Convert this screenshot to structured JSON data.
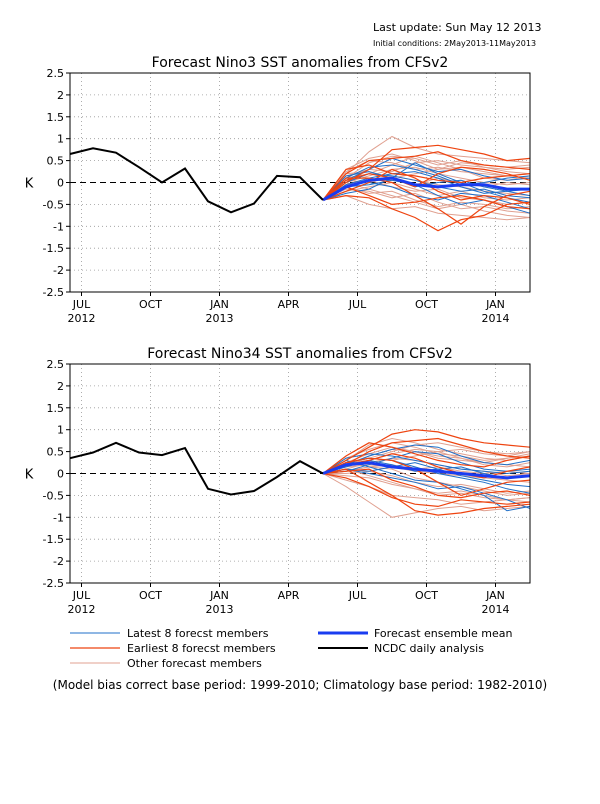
{
  "header": {
    "last_update": "Last update: Sun May 12 2013",
    "initial_condition": "Initial conditions: 2May2013-11May2013"
  },
  "x_axis": {
    "ticks": [
      {
        "label": "JUL",
        "year": "2012",
        "month": 6
      },
      {
        "label": "OCT",
        "year": "",
        "month": 9
      },
      {
        "label": "JAN",
        "year": "2013",
        "month": 12
      },
      {
        "label": "APR",
        "year": "",
        "month": 15
      },
      {
        "label": "JUL",
        "year": "",
        "month": 18
      },
      {
        "label": "OCT",
        "year": "",
        "month": 21
      },
      {
        "label": "JAN",
        "year": "2014",
        "month": 24
      }
    ]
  },
  "legend": {
    "latest": "Latest 8 forecst members",
    "earliest": "Earliest 8 forecst members",
    "other": "Other forecast members",
    "mean": "Forecast ensemble mean",
    "ncdc": "NCDC daily analysis"
  },
  "footnote": "(Model bias correct base period: 1999-2010; Climatology base period: 1982-2010)",
  "colors": {
    "latest": "#1f6fc8",
    "earliest": "#ee4410",
    "other": "#e0a090",
    "mean": "#1a3cf0",
    "observed": "#000000"
  },
  "chart_data": [
    {
      "type": "line",
      "title": "Forecast Nino3 SST anomalies from CFSv2",
      "ylabel": "K",
      "ylim": [
        -2.5,
        2.5
      ],
      "yticks": [
        2.5,
        2,
        1.5,
        1,
        0.5,
        0,
        -0.5,
        -1,
        -1.5,
        -2,
        -2.5
      ],
      "xlim": [
        5.5,
        25.5
      ],
      "grid": true,
      "legend_position": "below",
      "observed": {
        "name": "NCDC daily analysis",
        "x": [
          5.5,
          6.5,
          7.5,
          8.5,
          9.5,
          10.5,
          11.5,
          12.5,
          13.5,
          14.5,
          15.5,
          16.5
        ],
        "y": [
          0.65,
          0.78,
          0.68,
          0.35,
          0.0,
          0.32,
          -0.43,
          -0.68,
          -0.48,
          0.15,
          0.12,
          -0.4
        ]
      },
      "ensemble_mean": {
        "name": "Forecast ensemble mean",
        "x": [
          16.5,
          17.5,
          18.5,
          19.5,
          20.5,
          21.5,
          22.5,
          23.5,
          24.5,
          25.5
        ],
        "y": [
          -0.4,
          -0.1,
          0.05,
          0.1,
          -0.05,
          -0.1,
          -0.05,
          -0.05,
          -0.15,
          -0.15
        ]
      },
      "member_x": [
        16.5,
        17.5,
        18.5,
        19.5,
        20.5,
        21.5,
        22.5,
        23.5,
        24.5,
        25.5
      ],
      "latest_members": [
        [
          -0.4,
          0.05,
          0.3,
          0.55,
          0.4,
          0.25,
          0.3,
          0.15,
          0.05,
          0.1
        ],
        [
          -0.4,
          -0.25,
          -0.15,
          0.1,
          0.45,
          0.2,
          0.0,
          -0.2,
          -0.35,
          -0.45
        ],
        [
          -0.4,
          0.1,
          0.35,
          0.4,
          0.3,
          0.15,
          -0.05,
          0.0,
          0.1,
          0.15
        ],
        [
          -0.4,
          -0.2,
          0.0,
          -0.1,
          -0.3,
          -0.4,
          -0.25,
          -0.3,
          -0.45,
          -0.6
        ],
        [
          -0.4,
          0.0,
          0.2,
          0.15,
          0.05,
          -0.1,
          -0.2,
          -0.15,
          -0.3,
          -0.35
        ],
        [
          -0.4,
          -0.1,
          -0.05,
          0.05,
          -0.05,
          -0.3,
          -0.5,
          -0.4,
          -0.55,
          -0.7
        ],
        [
          -0.4,
          0.15,
          0.25,
          0.1,
          -0.1,
          0.0,
          0.05,
          -0.1,
          -0.2,
          -0.15
        ],
        [
          -0.4,
          -0.05,
          0.1,
          0.2,
          0.25,
          0.1,
          -0.1,
          -0.25,
          -0.2,
          -0.3
        ]
      ],
      "earliest_members": [
        [
          -0.4,
          0.0,
          0.3,
          0.75,
          0.8,
          0.85,
          0.75,
          0.65,
          0.5,
          0.55
        ],
        [
          -0.4,
          0.2,
          0.5,
          0.55,
          0.6,
          0.7,
          0.5,
          0.4,
          0.35,
          0.3
        ],
        [
          -0.4,
          -0.3,
          -0.35,
          -0.6,
          -0.8,
          -1.1,
          -0.85,
          -0.75,
          -0.5,
          -0.45
        ],
        [
          -0.4,
          0.1,
          0.1,
          0.0,
          -0.3,
          -0.6,
          -0.95,
          -0.55,
          -0.3,
          -0.2
        ],
        [
          -0.4,
          -0.1,
          -0.3,
          -0.5,
          -0.45,
          -0.35,
          -0.3,
          -0.4,
          -0.55,
          -0.6
        ],
        [
          -0.4,
          0.3,
          0.4,
          0.2,
          0.15,
          0.05,
          0.0,
          0.1,
          0.15,
          0.2
        ],
        [
          -0.4,
          -0.2,
          0.0,
          0.3,
          0.1,
          -0.2,
          -0.4,
          -0.3,
          -0.35,
          -0.5
        ],
        [
          -0.4,
          0.05,
          0.2,
          0.1,
          -0.1,
          0.2,
          0.35,
          0.3,
          0.2,
          0.05
        ]
      ],
      "other_members": [
        [
          -0.4,
          0.2,
          0.7,
          1.05,
          0.8,
          0.65,
          0.6,
          0.55,
          0.5,
          0.45
        ],
        [
          -0.4,
          0.1,
          0.45,
          0.6,
          0.55,
          0.4,
          0.5,
          0.35,
          0.25,
          0.2
        ],
        [
          -0.4,
          -0.3,
          -0.5,
          -0.6,
          -0.55,
          -0.7,
          -0.75,
          -0.8,
          -0.85,
          -0.8
        ],
        [
          -0.4,
          0.0,
          0.15,
          0.3,
          0.35,
          0.2,
          0.1,
          0.0,
          -0.05,
          0.0
        ],
        [
          -0.4,
          -0.15,
          -0.2,
          -0.35,
          -0.25,
          -0.45,
          -0.6,
          -0.55,
          -0.65,
          -0.7
        ],
        [
          -0.4,
          0.25,
          0.5,
          0.45,
          0.3,
          0.35,
          0.25,
          0.2,
          0.15,
          0.1
        ],
        [
          -0.4,
          -0.05,
          0.05,
          -0.1,
          -0.2,
          -0.15,
          -0.35,
          -0.4,
          -0.5,
          -0.45
        ],
        [
          -0.4,
          0.15,
          0.3,
          0.25,
          0.45,
          0.5,
          0.4,
          0.35,
          0.3,
          0.35
        ],
        [
          -0.4,
          -0.1,
          -0.25,
          -0.2,
          -0.4,
          -0.55,
          -0.45,
          -0.5,
          -0.6,
          -0.55
        ],
        [
          -0.4,
          0.05,
          0.0,
          0.15,
          0.05,
          -0.05,
          -0.1,
          -0.2,
          -0.25,
          -0.3
        ],
        [
          -0.4,
          0.3,
          0.55,
          0.65,
          0.5,
          0.3,
          0.35,
          0.25,
          0.15,
          0.2
        ],
        [
          -0.4,
          -0.2,
          -0.1,
          0.0,
          -0.15,
          -0.3,
          -0.2,
          -0.35,
          -0.4,
          -0.35
        ],
        [
          -0.4,
          0.1,
          0.2,
          0.4,
          0.6,
          0.45,
          0.3,
          0.1,
          0.05,
          0.15
        ],
        [
          -0.4,
          0.0,
          -0.15,
          -0.3,
          -0.45,
          -0.6,
          -0.5,
          -0.65,
          -0.75,
          -0.8
        ],
        [
          -0.4,
          0.2,
          0.25,
          0.1,
          0.2,
          0.3,
          0.45,
          0.4,
          0.35,
          0.4
        ],
        [
          -0.4,
          -0.05,
          0.1,
          0.05,
          -0.05,
          0.1,
          0.0,
          -0.1,
          0.0,
          -0.05
        ]
      ]
    },
    {
      "type": "line",
      "title": "Forecast Nino34 SST anomalies from CFSv2",
      "ylabel": "K",
      "ylim": [
        -2.5,
        2.5
      ],
      "yticks": [
        2.5,
        2,
        1.5,
        1,
        0.5,
        0,
        -0.5,
        -1,
        -1.5,
        -2,
        -2.5
      ],
      "xlim": [
        5.5,
        25.5
      ],
      "grid": true,
      "legend_position": "below",
      "observed": {
        "name": "NCDC daily analysis",
        "x": [
          5.5,
          6.5,
          7.5,
          8.5,
          9.5,
          10.5,
          11.5,
          12.5,
          13.5,
          14.5,
          15.5,
          16.5
        ],
        "y": [
          0.35,
          0.48,
          0.7,
          0.48,
          0.42,
          0.58,
          -0.35,
          -0.48,
          -0.4,
          -0.08,
          0.28,
          0.0
        ]
      },
      "ensemble_mean": {
        "name": "Forecast ensemble mean",
        "x": [
          16.5,
          17.5,
          18.5,
          19.5,
          20.5,
          21.5,
          22.5,
          23.5,
          24.5,
          25.5
        ],
        "y": [
          0.0,
          0.2,
          0.25,
          0.15,
          0.1,
          0.05,
          0.0,
          -0.05,
          -0.1,
          -0.05
        ]
      },
      "member_x": [
        16.5,
        17.5,
        18.5,
        19.5,
        20.5,
        21.5,
        22.5,
        23.5,
        24.5,
        25.5
      ],
      "latest_members": [
        [
          0.0,
          0.2,
          0.4,
          0.55,
          0.65,
          0.6,
          0.4,
          0.25,
          0.2,
          0.3
        ],
        [
          0.0,
          0.1,
          0.0,
          -0.1,
          -0.2,
          -0.35,
          -0.3,
          -0.45,
          -0.6,
          -0.8
        ],
        [
          0.0,
          0.25,
          0.35,
          0.3,
          0.15,
          0.0,
          -0.1,
          -0.2,
          -0.35,
          -0.45
        ],
        [
          0.0,
          0.05,
          0.2,
          0.35,
          0.5,
          0.45,
          0.25,
          0.1,
          0.05,
          0.1
        ],
        [
          0.0,
          0.3,
          0.15,
          0.0,
          -0.15,
          -0.2,
          -0.35,
          -0.5,
          -0.85,
          -0.75
        ],
        [
          0.0,
          0.15,
          0.3,
          0.2,
          0.05,
          0.1,
          0.15,
          0.0,
          -0.1,
          -0.05
        ],
        [
          0.0,
          0.35,
          0.45,
          0.4,
          0.3,
          0.2,
          0.1,
          0.05,
          0.0,
          0.05
        ],
        [
          0.0,
          0.1,
          0.05,
          0.15,
          0.25,
          0.1,
          -0.05,
          -0.15,
          -0.25,
          -0.3
        ]
      ],
      "earliest_members": [
        [
          0.0,
          0.3,
          0.6,
          0.9,
          1.0,
          0.95,
          0.8,
          0.7,
          0.65,
          0.6
        ],
        [
          0.0,
          0.2,
          0.5,
          0.7,
          0.75,
          0.8,
          0.65,
          0.5,
          0.4,
          0.35
        ],
        [
          0.0,
          0.1,
          -0.2,
          -0.5,
          -0.85,
          -0.95,
          -0.9,
          -0.8,
          -0.75,
          -0.7
        ],
        [
          0.0,
          -0.1,
          -0.3,
          -0.55,
          -0.7,
          -0.75,
          -0.6,
          -0.65,
          -0.7,
          -0.65
        ],
        [
          0.0,
          0.25,
          0.35,
          0.3,
          0.1,
          -0.2,
          -0.5,
          -0.35,
          -0.2,
          -0.15
        ],
        [
          0.0,
          0.4,
          0.7,
          0.6,
          0.45,
          0.3,
          0.2,
          0.15,
          0.3,
          0.4
        ],
        [
          0.0,
          0.05,
          0.1,
          -0.15,
          -0.3,
          -0.5,
          -0.55,
          -0.45,
          -0.4,
          -0.5
        ],
        [
          0.0,
          0.2,
          0.3,
          0.45,
          0.35,
          0.15,
          0.0,
          -0.1,
          0.05,
          0.15
        ]
      ],
      "other_members": [
        [
          0.0,
          0.3,
          0.65,
          0.8,
          0.7,
          0.55,
          0.45,
          0.35,
          0.3,
          0.4
        ],
        [
          0.0,
          0.15,
          0.4,
          0.55,
          0.5,
          0.4,
          0.35,
          0.25,
          0.2,
          0.15
        ],
        [
          0.0,
          -0.3,
          -0.65,
          -1.0,
          -0.9,
          -0.8,
          -0.75,
          -0.85,
          -0.8,
          -0.75
        ],
        [
          0.0,
          0.1,
          0.25,
          0.35,
          0.3,
          0.2,
          0.1,
          0.05,
          -0.05,
          0.0
        ],
        [
          0.0,
          -0.15,
          -0.3,
          -0.5,
          -0.55,
          -0.6,
          -0.7,
          -0.65,
          -0.6,
          -0.55
        ],
        [
          0.0,
          0.25,
          0.45,
          0.6,
          0.5,
          0.35,
          0.3,
          0.25,
          0.35,
          0.45
        ],
        [
          0.0,
          0.05,
          0.15,
          0.1,
          -0.1,
          -0.2,
          -0.3,
          -0.4,
          -0.5,
          -0.45
        ],
        [
          0.0,
          0.2,
          0.35,
          0.5,
          0.65,
          0.7,
          0.6,
          0.5,
          0.45,
          0.5
        ],
        [
          0.0,
          -0.05,
          -0.1,
          -0.25,
          -0.35,
          -0.45,
          -0.4,
          -0.5,
          -0.6,
          -0.55
        ],
        [
          0.0,
          0.15,
          0.2,
          0.15,
          0.05,
          0.0,
          -0.05,
          -0.1,
          -0.15,
          -0.2
        ],
        [
          0.0,
          0.35,
          0.55,
          0.7,
          0.6,
          0.45,
          0.4,
          0.3,
          0.35,
          0.4
        ],
        [
          0.0,
          0.0,
          0.05,
          -0.05,
          -0.2,
          -0.3,
          -0.25,
          -0.35,
          -0.45,
          -0.4
        ],
        [
          0.0,
          0.2,
          0.3,
          0.45,
          0.55,
          0.5,
          0.35,
          0.2,
          0.15,
          0.25
        ],
        [
          0.0,
          0.1,
          -0.05,
          -0.2,
          -0.35,
          -0.5,
          -0.45,
          -0.55,
          -0.6,
          -0.65
        ],
        [
          0.0,
          0.25,
          0.35,
          0.3,
          0.4,
          0.5,
          0.55,
          0.45,
          0.4,
          0.5
        ],
        [
          0.0,
          0.05,
          0.15,
          0.2,
          0.1,
          0.15,
          0.05,
          0.0,
          0.05,
          0.0
        ]
      ]
    }
  ]
}
